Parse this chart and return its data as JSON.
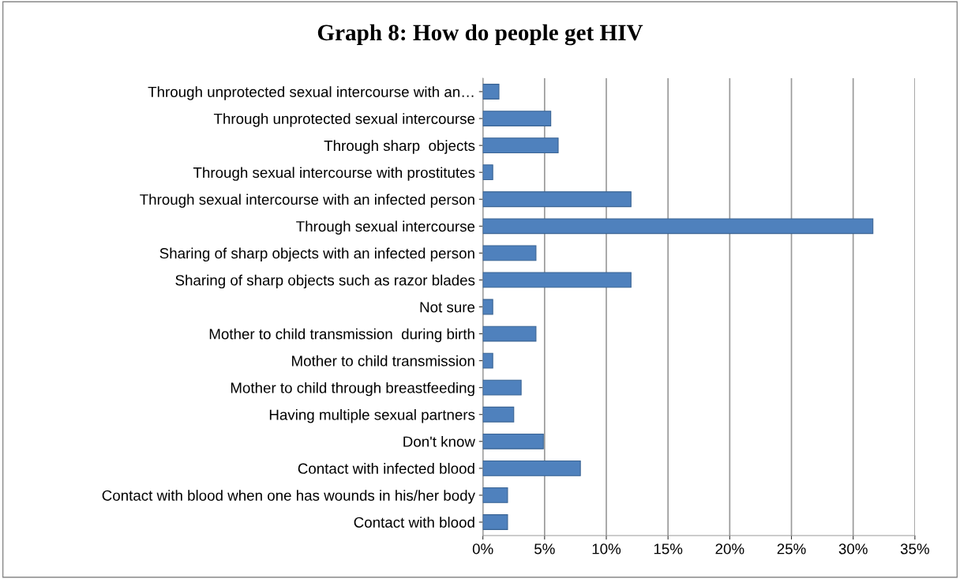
{
  "chart_data": {
    "type": "bar",
    "orientation": "horizontal",
    "title": "Graph 8: How do people get HIV",
    "categories": [
      "Through unprotected sexual intercourse with an…",
      "Through unprotected sexual intercourse",
      "Through sharp  objects",
      "Through sexual intercourse with prostitutes",
      "Through sexual intercourse with an infected person",
      "Through sexual intercourse",
      "Sharing of sharp objects with an infected person",
      "Sharing of sharp objects such as razor blades",
      "Not sure",
      "Mother to child transmission  during birth",
      "Mother to child transmission",
      "Mother to child through breastfeeding",
      "Having multiple sexual partners",
      "Don't know",
      "Contact with infected blood",
      "Contact with blood when one has wounds in his/her body",
      "Contact with blood"
    ],
    "values": [
      1.3,
      5.5,
      6.1,
      0.8,
      12.0,
      31.6,
      4.3,
      12.0,
      0.8,
      4.3,
      0.8,
      3.1,
      2.5,
      4.9,
      7.9,
      2.0,
      2.0
    ],
    "color": "#4f81bd",
    "xlim": [
      0,
      35
    ],
    "xticks": [
      {
        "value": 0,
        "label": "0%"
      },
      {
        "value": 5,
        "label": "5%"
      },
      {
        "value": 10,
        "label": "10%"
      },
      {
        "value": 15,
        "label": "15%"
      },
      {
        "value": 20,
        "label": "20%"
      },
      {
        "value": 25,
        "label": "25%"
      },
      {
        "value": 30,
        "label": "30%"
      },
      {
        "value": 35,
        "label": "35%"
      }
    ],
    "grid": "x"
  }
}
